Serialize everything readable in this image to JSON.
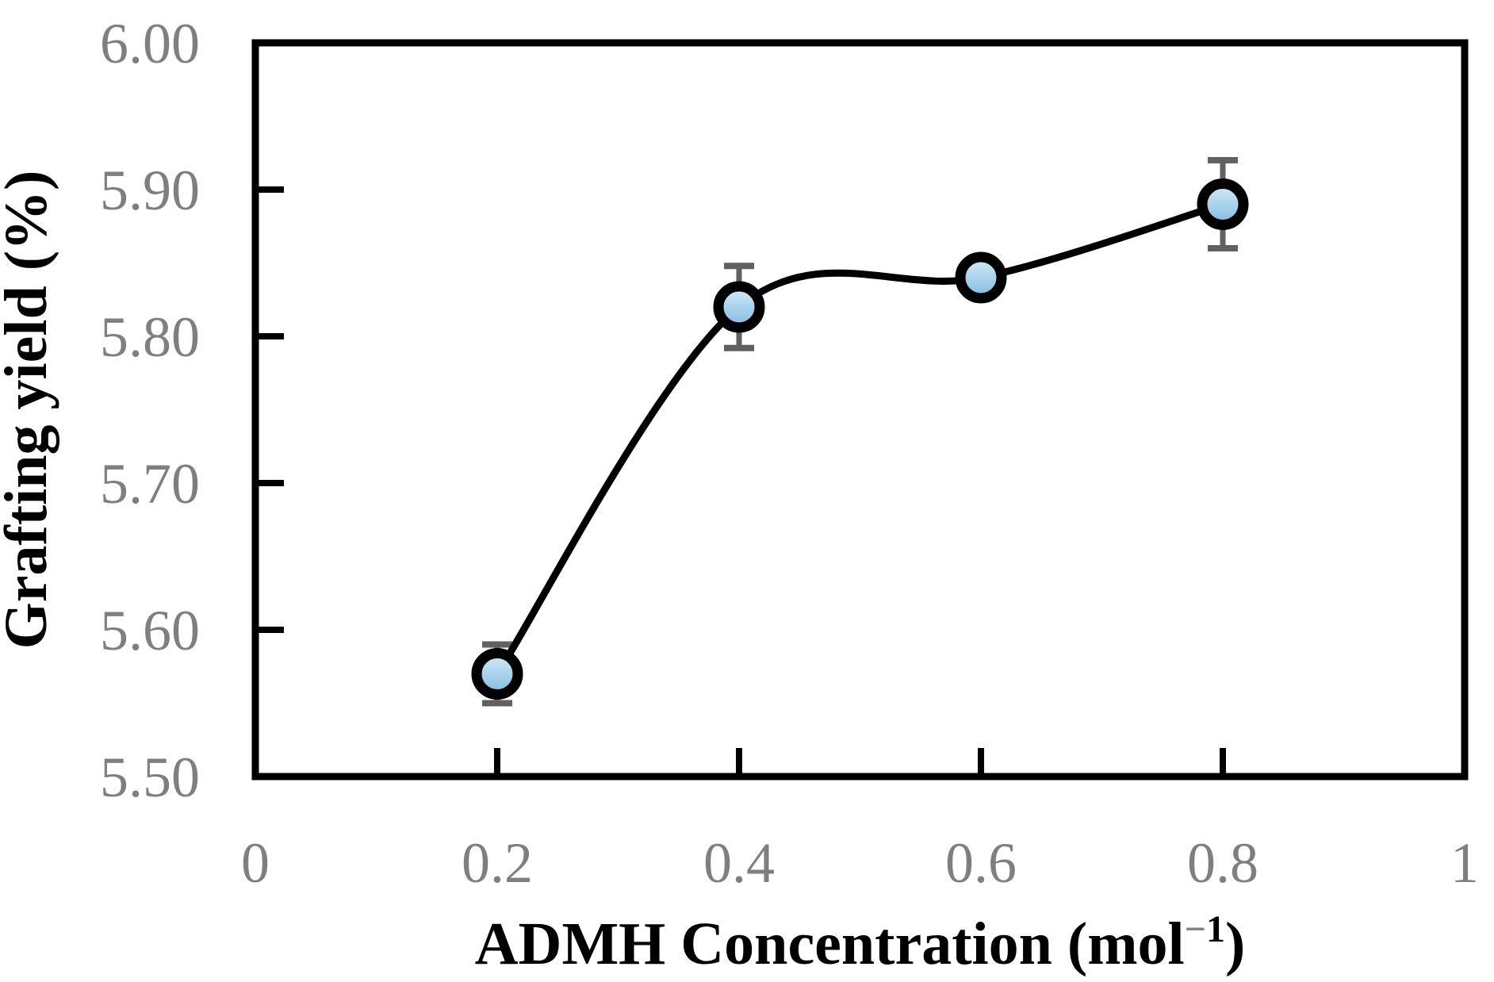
{
  "chart_data": {
    "type": "line",
    "title": "",
    "xlabel": "ADMH Concentration (mol⁻¹)",
    "ylabel": "Grafting yield (%)",
    "x": [
      0.2,
      0.4,
      0.6,
      0.8
    ],
    "y": [
      5.57,
      5.82,
      5.84,
      5.89
    ],
    "yerr": [
      0.02,
      0.028,
      0.01,
      0.03
    ],
    "series_name": "Grafting yield",
    "xlim": [
      0,
      1
    ],
    "ylim": [
      5.5,
      6.0
    ],
    "x_ticks": [
      0,
      0.2,
      0.4,
      0.6,
      0.8,
      1
    ],
    "x_tick_labels": [
      "0",
      "0.2",
      "0.4",
      "0.6",
      "0.8",
      "1"
    ],
    "y_ticks": [
      5.5,
      5.6,
      5.7,
      5.8,
      5.9,
      6.0
    ],
    "y_tick_labels": [
      "5.50",
      "5.60",
      "5.70",
      "5.80",
      "5.90",
      "6.00"
    ],
    "grid": false,
    "legend": false,
    "line_style": "smooth",
    "marker": "circle",
    "colors": {
      "line": "#000000",
      "axis": "#000000",
      "marker_stroke": "#000000",
      "marker_fill_top": "#d9ecf9",
      "marker_fill_mid": "#aad3ec",
      "marker_fill_bottom": "#84b9dc",
      "error_bar": "#616161",
      "tick_label": "#7f7f7f",
      "title_text": "#000000",
      "superscript_minus": "#7f7f7f",
      "background": "#ffffff"
    }
  }
}
